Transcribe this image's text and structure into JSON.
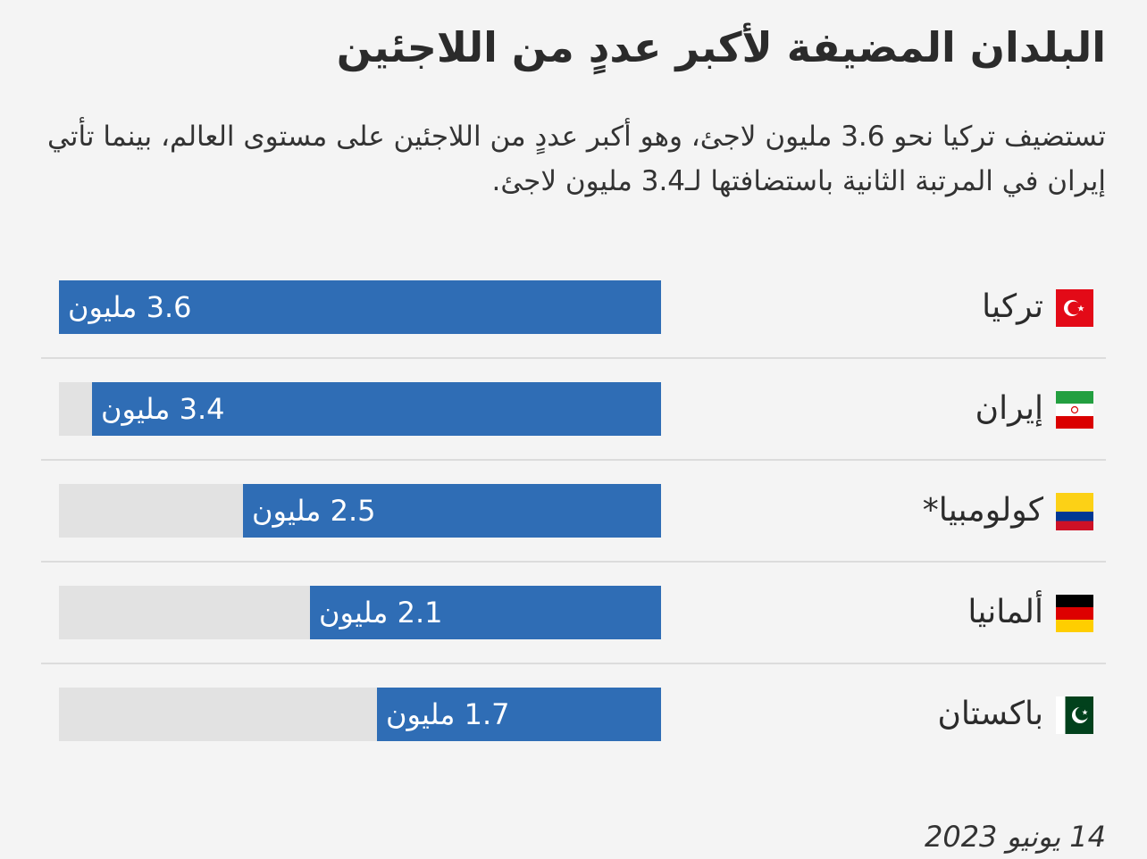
{
  "title": "البلدان المضيفة لأكبر عددٍ من اللاجئين",
  "subtitle": "تستضيف تركيا نحو 3.6 مليون لاجئ، وهو أكبر عددٍ من اللاجئين على مستوى العالم، بينما تأتي إيران في المرتبة الثانية باستضافتها لـ3.4 مليون لاجئ.",
  "date": "14 يونيو 2023",
  "colors": {
    "bar": "#2f6db5",
    "track": "#e2e2e2",
    "background": "#f4f4f4"
  },
  "chart_data": {
    "type": "bar",
    "orientation": "horizontal",
    "direction": "right-to-left",
    "unit": "مليون",
    "xlim": [
      0,
      3.6
    ],
    "grid": false,
    "categories": [
      "تركيا",
      "إيران",
      "كولومبيا*",
      "ألمانيا",
      "باكستان"
    ],
    "values": [
      3.6,
      3.4,
      2.5,
      2.1,
      1.7
    ],
    "labels": [
      "3.6 مليون",
      "3.4 مليون",
      "2.5 مليون",
      "2.1 مليون",
      "1.7 مليون"
    ],
    "flags": [
      "turkey-flag-icon",
      "iran-flag-icon",
      "colombia-flag-icon",
      "germany-flag-icon",
      "pakistan-flag-icon"
    ]
  }
}
